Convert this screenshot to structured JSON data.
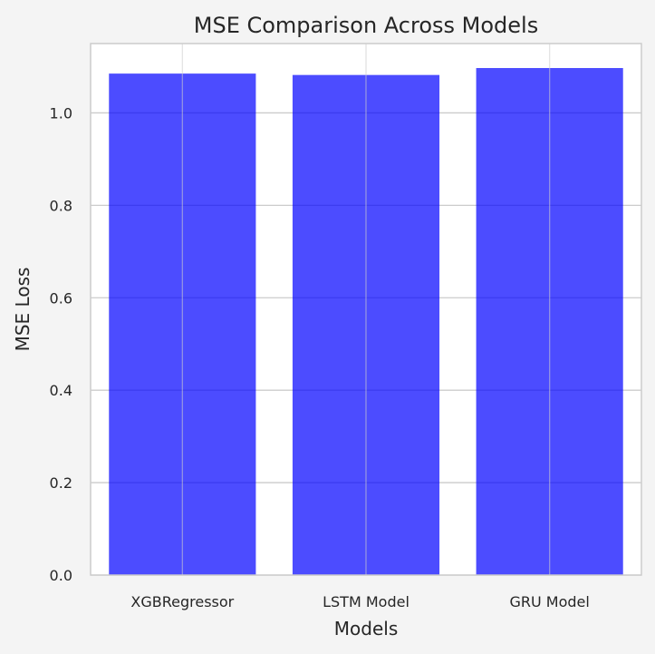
{
  "chart_data": {
    "type": "bar",
    "title": "MSE Comparison Across Models",
    "xlabel": "Models",
    "ylabel": "MSE Loss",
    "categories": [
      "XGBRegressor",
      "LSTM Model",
      "GRU Model"
    ],
    "values": [
      1.085,
      1.082,
      1.097
    ],
    "ylim": [
      0,
      1.15
    ],
    "yticks": [
      "0.0",
      "0.2",
      "0.4",
      "0.6",
      "0.8",
      "1.0"
    ],
    "grid": true,
    "legend": "none"
  },
  "colors": {
    "bar": "#0000ff",
    "bar_opacity": 0.7,
    "figure_background": "#f4f4f4",
    "plot_background": "#ffffff",
    "grid": "#cccccc",
    "axis_frame": "#cccccc",
    "text": "#262626"
  }
}
